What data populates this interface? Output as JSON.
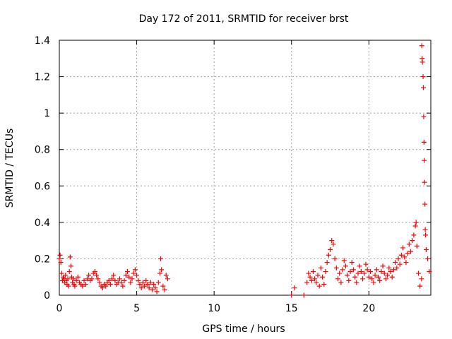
{
  "chart_data": {
    "type": "scatter",
    "title": "Day 172 of 2011, SRMTID for receiver brst",
    "xlabel": "GPS time / hours",
    "ylabel": "SRMTID / TECUs",
    "xlim": [
      0,
      24
    ],
    "ylim": [
      0,
      1.4
    ],
    "xticks": [
      0,
      5,
      10,
      15,
      20
    ],
    "yticks": [
      0,
      0.2,
      0.4,
      0.6,
      0.8,
      1,
      1.2,
      1.4
    ],
    "xtick_labels": [
      "0",
      "5",
      "10",
      "15",
      "20"
    ],
    "ytick_labels": [
      "0",
      "0.2",
      "0.4",
      "0.6",
      "0.8",
      "1",
      "1.2",
      "1.4"
    ],
    "grid": true,
    "legend": "none",
    "marker": "+",
    "color": "#ff0000",
    "series": [
      {
        "points": [
          [
            0.0,
            0.2
          ],
          [
            0.05,
            0.22
          ],
          [
            0.1,
            0.18
          ],
          [
            0.15,
            0.12
          ],
          [
            0.2,
            0.08
          ],
          [
            0.25,
            0.1
          ],
          [
            0.3,
            0.09
          ],
          [
            0.35,
            0.07
          ],
          [
            0.4,
            0.11
          ],
          [
            0.45,
            0.08
          ],
          [
            0.5,
            0.06
          ],
          [
            0.55,
            0.09
          ],
          [
            0.6,
            0.05
          ],
          [
            0.65,
            0.13
          ],
          [
            0.7,
            0.21
          ],
          [
            0.75,
            0.16
          ],
          [
            0.8,
            0.1
          ],
          [
            0.85,
            0.07
          ],
          [
            0.9,
            0.09
          ],
          [
            0.95,
            0.06
          ],
          [
            1.0,
            0.05
          ],
          [
            1.1,
            0.08
          ],
          [
            1.2,
            0.1
          ],
          [
            1.3,
            0.07
          ],
          [
            1.4,
            0.06
          ],
          [
            1.5,
            0.05
          ],
          [
            1.6,
            0.08
          ],
          [
            1.7,
            0.06
          ],
          [
            1.8,
            0.09
          ],
          [
            1.9,
            0.11
          ],
          [
            2.0,
            0.08
          ],
          [
            2.1,
            0.09
          ],
          [
            2.2,
            0.12
          ],
          [
            2.3,
            0.13
          ],
          [
            2.4,
            0.11
          ],
          [
            2.5,
            0.09
          ],
          [
            2.6,
            0.07
          ],
          [
            2.7,
            0.05
          ],
          [
            2.8,
            0.04
          ],
          [
            2.9,
            0.06
          ],
          [
            3.0,
            0.05
          ],
          [
            3.1,
            0.07
          ],
          [
            3.2,
            0.08
          ],
          [
            3.3,
            0.06
          ],
          [
            3.4,
            0.09
          ],
          [
            3.5,
            0.11
          ],
          [
            3.6,
            0.08
          ],
          [
            3.7,
            0.06
          ],
          [
            3.8,
            0.07
          ],
          [
            3.9,
            0.09
          ],
          [
            4.0,
            0.07
          ],
          [
            4.1,
            0.05
          ],
          [
            4.2,
            0.08
          ],
          [
            4.3,
            0.11
          ],
          [
            4.4,
            0.13
          ],
          [
            4.5,
            0.1
          ],
          [
            4.6,
            0.07
          ],
          [
            4.7,
            0.09
          ],
          [
            4.8,
            0.12
          ],
          [
            4.9,
            0.14
          ],
          [
            5.0,
            0.11
          ],
          [
            5.1,
            0.08
          ],
          [
            5.2,
            0.06
          ],
          [
            5.3,
            0.04
          ],
          [
            5.4,
            0.07
          ],
          [
            5.5,
            0.05
          ],
          [
            5.6,
            0.08
          ],
          [
            5.7,
            0.06
          ],
          [
            5.8,
            0.04
          ],
          [
            5.9,
            0.07
          ],
          [
            6.0,
            0.03
          ],
          [
            6.1,
            0.06
          ],
          [
            6.2,
            0.04
          ],
          [
            6.3,
            0.02
          ],
          [
            6.4,
            0.07
          ],
          [
            6.5,
            0.12
          ],
          [
            6.55,
            0.2
          ],
          [
            6.6,
            0.14
          ],
          [
            6.7,
            0.05
          ],
          [
            6.8,
            0.03
          ],
          [
            6.9,
            0.11
          ],
          [
            7.0,
            0.09
          ],
          [
            15.0,
            0.0
          ],
          [
            15.2,
            0.04
          ],
          [
            15.8,
            0.0
          ],
          [
            16.0,
            0.07
          ],
          [
            16.1,
            0.12
          ],
          [
            16.2,
            0.1
          ],
          [
            16.3,
            0.08
          ],
          [
            16.4,
            0.13
          ],
          [
            16.5,
            0.09
          ],
          [
            16.6,
            0.07
          ],
          [
            16.7,
            0.11
          ],
          [
            16.8,
            0.05
          ],
          [
            16.9,
            0.15
          ],
          [
            17.0,
            0.1
          ],
          [
            17.1,
            0.06
          ],
          [
            17.2,
            0.13
          ],
          [
            17.3,
            0.18
          ],
          [
            17.4,
            0.22
          ],
          [
            17.5,
            0.25
          ],
          [
            17.6,
            0.3
          ],
          [
            17.7,
            0.28
          ],
          [
            17.8,
            0.2
          ],
          [
            17.9,
            0.15
          ],
          [
            18.0,
            0.09
          ],
          [
            18.1,
            0.12
          ],
          [
            18.2,
            0.07
          ],
          [
            18.3,
            0.14
          ],
          [
            18.4,
            0.19
          ],
          [
            18.5,
            0.16
          ],
          [
            18.6,
            0.11
          ],
          [
            18.7,
            0.08
          ],
          [
            18.8,
            0.13
          ],
          [
            18.9,
            0.18
          ],
          [
            19.0,
            0.14
          ],
          [
            19.1,
            0.1
          ],
          [
            19.2,
            0.07
          ],
          [
            19.3,
            0.12
          ],
          [
            19.4,
            0.16
          ],
          [
            19.5,
            0.13
          ],
          [
            19.6,
            0.09
          ],
          [
            19.7,
            0.12
          ],
          [
            19.8,
            0.17
          ],
          [
            19.9,
            0.14
          ],
          [
            20.0,
            0.1
          ],
          [
            20.1,
            0.13
          ],
          [
            20.2,
            0.09
          ],
          [
            20.3,
            0.07
          ],
          [
            20.4,
            0.11
          ],
          [
            20.5,
            0.14
          ],
          [
            20.6,
            0.1
          ],
          [
            20.7,
            0.08
          ],
          [
            20.8,
            0.13
          ],
          [
            20.9,
            0.16
          ],
          [
            21.0,
            0.12
          ],
          [
            21.1,
            0.09
          ],
          [
            21.2,
            0.11
          ],
          [
            21.3,
            0.15
          ],
          [
            21.4,
            0.13
          ],
          [
            21.5,
            0.1
          ],
          [
            21.6,
            0.14
          ],
          [
            21.7,
            0.18
          ],
          [
            21.8,
            0.15
          ],
          [
            21.9,
            0.2
          ],
          [
            22.0,
            0.17
          ],
          [
            22.1,
            0.22
          ],
          [
            22.2,
            0.26
          ],
          [
            22.3,
            0.21
          ],
          [
            22.4,
            0.18
          ],
          [
            22.5,
            0.23
          ],
          [
            22.6,
            0.28
          ],
          [
            22.7,
            0.24
          ],
          [
            22.8,
            0.3
          ],
          [
            22.9,
            0.33
          ],
          [
            23.0,
            0.38
          ],
          [
            23.05,
            0.4
          ],
          [
            23.1,
            0.27
          ],
          [
            23.2,
            0.12
          ],
          [
            23.3,
            0.05
          ],
          [
            23.4,
            0.09
          ],
          [
            23.42,
            1.37
          ],
          [
            23.44,
            1.3
          ],
          [
            23.46,
            1.28
          ],
          [
            23.5,
            1.2
          ],
          [
            23.52,
            1.14
          ],
          [
            23.54,
            0.98
          ],
          [
            23.56,
            0.84
          ],
          [
            23.58,
            0.74
          ],
          [
            23.6,
            0.62
          ],
          [
            23.62,
            0.5
          ],
          [
            23.64,
            0.36
          ],
          [
            23.66,
            0.33
          ],
          [
            23.7,
            0.25
          ],
          [
            23.8,
            0.2
          ],
          [
            23.9,
            0.13
          ]
        ]
      }
    ]
  }
}
